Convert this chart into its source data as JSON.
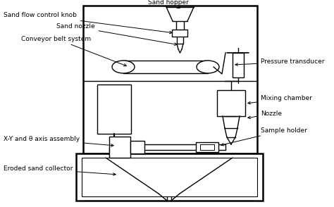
{
  "bg_color": "#ffffff",
  "line_color": "#000000",
  "labels": {
    "sand_hopper": "Sand hopper",
    "sand_flow": "Sand flow control knob",
    "sand_nozzle": "Sand nozzle",
    "conveyor": "Conveyor belt system",
    "pressure": "Pressure transducer",
    "mixing": "Mixing chamber",
    "nozzle": "Nozzle",
    "xy_axis": "X-Y and θ axis assembly",
    "sample": "Sample holder",
    "eroded": "Eroded sand collector"
  },
  "figsize": [
    4.74,
    2.94
  ],
  "dpi": 100
}
